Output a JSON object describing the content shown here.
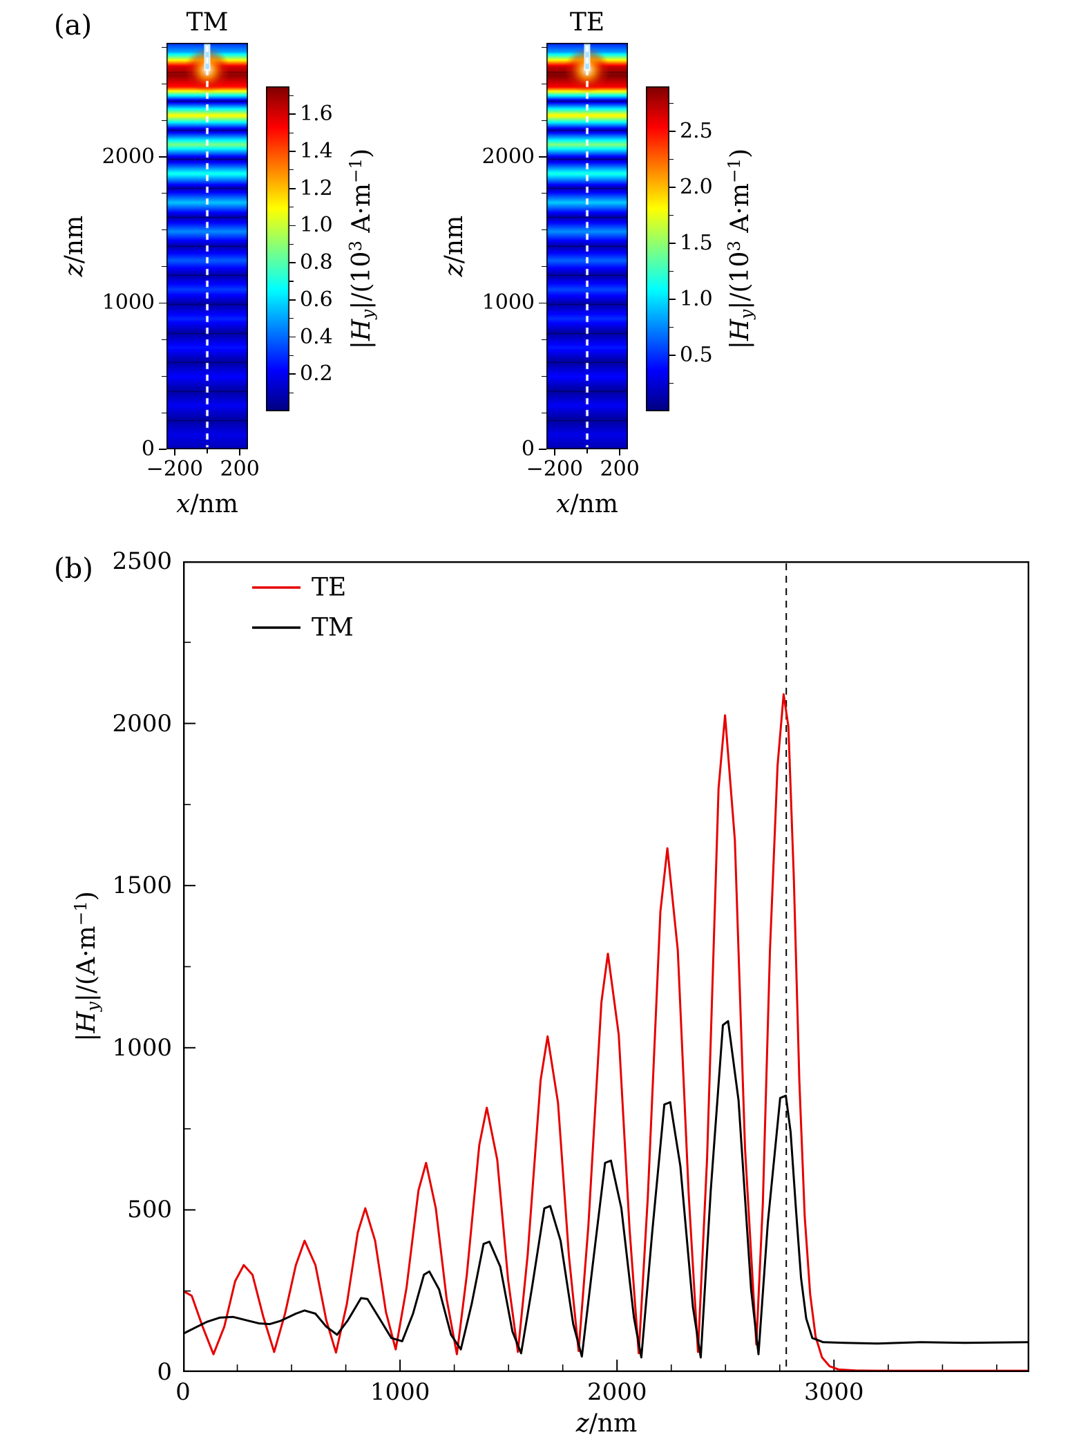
{
  "figure": {
    "panel_a_label": "(a)",
    "panel_b_label": "(b)"
  },
  "labels": {
    "z_nm": [
      {
        "t": "z",
        "i": true
      },
      {
        "t": "/nm"
      }
    ],
    "x_nm": [
      {
        "t": "x",
        "i": true
      },
      {
        "t": "/nm"
      }
    ],
    "hy_scaled": [
      {
        "t": "|"
      },
      {
        "t": "H",
        "i": true
      },
      {
        "t": "y",
        "i": true,
        "sub": true
      },
      {
        "t": "|/(10"
      },
      {
        "t": "3",
        "sup": true
      },
      {
        "t": " A·m"
      },
      {
        "t": "−1",
        "sup": true
      },
      {
        "t": ")"
      }
    ],
    "hy_plain": [
      {
        "t": "|"
      },
      {
        "t": "H",
        "i": true
      },
      {
        "t": "y",
        "i": true,
        "sub": true
      },
      {
        "t": "|/(A·m"
      },
      {
        "t": "−1",
        "sup": true
      },
      {
        "t": ")"
      }
    ]
  },
  "chart_data": [
    {
      "type": "heatmap",
      "id": "tm",
      "title": "TM",
      "xlabel": "x/nm",
      "ylabel": "z/nm",
      "xlim": [
        -250,
        250
      ],
      "zlim": [
        0,
        2780
      ],
      "x_ticks": [
        {
          "v": -200,
          "label": "−200"
        },
        {
          "v": 200,
          "label": "200"
        }
      ],
      "x_minor_ticks": [
        0
      ],
      "y_ticks": [
        {
          "v": 0,
          "label": "0"
        },
        {
          "v": 1000,
          "label": "1000"
        },
        {
          "v": 2000,
          "label": "2000"
        }
      ],
      "y_minor_step": 250,
      "layer_period_nm": 198.6,
      "groove": {
        "width_nm": 30,
        "depth_nm": 185
      },
      "center_dash_x": 0,
      "colorbar": {
        "vmin": 0,
        "vmax": 1.75,
        "ticks": [
          {
            "v": 0.2,
            "label": "0.2"
          },
          {
            "v": 0.4,
            "label": "0.4"
          },
          {
            "v": 0.6,
            "label": "0.6"
          },
          {
            "v": 0.8,
            "label": "0.8"
          },
          {
            "v": 1.0,
            "label": "1.0"
          },
          {
            "v": 1.2,
            "label": "1.2"
          },
          {
            "v": 1.4,
            "label": "1.4"
          },
          {
            "v": 1.6,
            "label": "1.6"
          }
        ]
      },
      "profile": [
        [
          0,
          0.1
        ],
        [
          99,
          0.18
        ],
        [
          199,
          0.06
        ],
        [
          298,
          0.2
        ],
        [
          397,
          0.06
        ],
        [
          496,
          0.22
        ],
        [
          596,
          0.06
        ],
        [
          695,
          0.25
        ],
        [
          794,
          0.06
        ],
        [
          893,
          0.28
        ],
        [
          993,
          0.06
        ],
        [
          1092,
          0.32
        ],
        [
          1191,
          0.07
        ],
        [
          1291,
          0.38
        ],
        [
          1390,
          0.07
        ],
        [
          1489,
          0.46
        ],
        [
          1589,
          0.07
        ],
        [
          1688,
          0.56
        ],
        [
          1787,
          0.08
        ],
        [
          1886,
          0.7
        ],
        [
          1986,
          0.08
        ],
        [
          2085,
          0.88
        ],
        [
          2184,
          0.09
        ],
        [
          2284,
          1.12
        ],
        [
          2383,
          0.1
        ],
        [
          2480,
          1.5
        ],
        [
          2560,
          1.72
        ],
        [
          2620,
          1.6
        ],
        [
          2680,
          0.9
        ],
        [
          2720,
          0.5
        ],
        [
          2780,
          0.3
        ]
      ]
    },
    {
      "type": "heatmap",
      "id": "te",
      "title": "TE",
      "xlabel": "x/nm",
      "ylabel": "z/nm",
      "xlim": [
        -250,
        250
      ],
      "zlim": [
        0,
        2780
      ],
      "x_ticks": [
        {
          "v": -200,
          "label": "−200"
        },
        {
          "v": 200,
          "label": "200"
        }
      ],
      "x_minor_ticks": [
        0
      ],
      "y_ticks": [
        {
          "v": 0,
          "label": "0"
        },
        {
          "v": 1000,
          "label": "1000"
        },
        {
          "v": 2000,
          "label": "2000"
        }
      ],
      "y_minor_step": 250,
      "layer_period_nm": 198.6,
      "groove": {
        "width_nm": 30,
        "depth_nm": 185
      },
      "center_dash_x": 0,
      "colorbar": {
        "vmin": 0,
        "vmax": 2.9,
        "ticks": [
          {
            "v": 0.5,
            "label": "0.5"
          },
          {
            "v": 1.0,
            "label": "1.0"
          },
          {
            "v": 1.5,
            "label": "1.5"
          },
          {
            "v": 2.0,
            "label": "2.0"
          },
          {
            "v": 2.5,
            "label": "2.5"
          }
        ]
      },
      "profile": [
        [
          0,
          0.15
        ],
        [
          99,
          0.3
        ],
        [
          199,
          0.08
        ],
        [
          298,
          0.34
        ],
        [
          397,
          0.08
        ],
        [
          496,
          0.38
        ],
        [
          596,
          0.09
        ],
        [
          695,
          0.43
        ],
        [
          794,
          0.09
        ],
        [
          893,
          0.49
        ],
        [
          993,
          0.1
        ],
        [
          1092,
          0.56
        ],
        [
          1191,
          0.1
        ],
        [
          1291,
          0.65
        ],
        [
          1390,
          0.11
        ],
        [
          1489,
          0.78
        ],
        [
          1589,
          0.11
        ],
        [
          1688,
          0.95
        ],
        [
          1787,
          0.12
        ],
        [
          1886,
          1.18
        ],
        [
          1986,
          0.13
        ],
        [
          2085,
          1.48
        ],
        [
          2184,
          0.14
        ],
        [
          2284,
          1.88
        ],
        [
          2383,
          0.16
        ],
        [
          2480,
          2.55
        ],
        [
          2560,
          2.9
        ],
        [
          2620,
          2.7
        ],
        [
          2680,
          1.5
        ],
        [
          2720,
          0.8
        ],
        [
          2780,
          0.45
        ]
      ]
    },
    {
      "type": "line",
      "id": "b",
      "xlabel": "z/nm",
      "ylabel": "|Hy|/(A·m−1)",
      "xlim": [
        0,
        3900
      ],
      "ylim": [
        0,
        2500
      ],
      "x_ticks": [
        {
          "v": 0,
          "label": "0"
        },
        {
          "v": 1000,
          "label": "1000"
        },
        {
          "v": 2000,
          "label": "2000"
        },
        {
          "v": 3000,
          "label": "3000"
        }
      ],
      "x_minor_step": 250,
      "y_ticks": [
        {
          "v": 0,
          "label": "0"
        },
        {
          "v": 500,
          "label": "500"
        },
        {
          "v": 1000,
          "label": "1000"
        },
        {
          "v": 1500,
          "label": "1500"
        },
        {
          "v": 2000,
          "label": "2000"
        },
        {
          "v": 2500,
          "label": "2500"
        }
      ],
      "y_minor_step": 250,
      "dashed_line_x": 2780,
      "grid": false,
      "legend_position": "top-left",
      "series": [
        {
          "name": "TE",
          "color": "#e60000",
          "points": [
            [
              0,
              250
            ],
            [
              40,
              235
            ],
            [
              90,
              140
            ],
            [
              140,
              55
            ],
            [
              190,
              140
            ],
            [
              240,
              280
            ],
            [
              280,
              330
            ],
            [
              320,
              300
            ],
            [
              370,
              170
            ],
            [
              420,
              62
            ],
            [
              470,
              180
            ],
            [
              520,
              330
            ],
            [
              560,
              405
            ],
            [
              610,
              330
            ],
            [
              660,
              160
            ],
            [
              705,
              60
            ],
            [
              755,
              210
            ],
            [
              805,
              430
            ],
            [
              840,
              505
            ],
            [
              885,
              405
            ],
            [
              935,
              185
            ],
            [
              980,
              70
            ],
            [
              1030,
              260
            ],
            [
              1085,
              560
            ],
            [
              1120,
              645
            ],
            [
              1165,
              505
            ],
            [
              1215,
              225
            ],
            [
              1262,
              55
            ],
            [
              1308,
              300
            ],
            [
              1365,
              700
            ],
            [
              1400,
              815
            ],
            [
              1448,
              655
            ],
            [
              1498,
              285
            ],
            [
              1543,
              62
            ],
            [
              1588,
              360
            ],
            [
              1648,
              900
            ],
            [
              1680,
              1035
            ],
            [
              1728,
              830
            ],
            [
              1778,
              360
            ],
            [
              1823,
              65
            ],
            [
              1868,
              450
            ],
            [
              1928,
              1140
            ],
            [
              1958,
              1290
            ],
            [
              2008,
              1040
            ],
            [
              2058,
              440
            ],
            [
              2100,
              58
            ],
            [
              2142,
              540
            ],
            [
              2200,
              1420
            ],
            [
              2232,
              1615
            ],
            [
              2280,
              1300
            ],
            [
              2330,
              550
            ],
            [
              2373,
              62
            ],
            [
              2415,
              660
            ],
            [
              2468,
              1800
            ],
            [
              2498,
              2025
            ],
            [
              2543,
              1640
            ],
            [
              2590,
              690
            ],
            [
              2642,
              85
            ],
            [
              2672,
              520
            ],
            [
              2705,
              1300
            ],
            [
              2740,
              1870
            ],
            [
              2768,
              2090
            ],
            [
              2790,
              1990
            ],
            [
              2815,
              1520
            ],
            [
              2840,
              900
            ],
            [
              2865,
              480
            ],
            [
              2890,
              240
            ],
            [
              2915,
              110
            ],
            [
              2945,
              45
            ],
            [
              2980,
              18
            ],
            [
              3020,
              8
            ],
            [
              3100,
              5
            ],
            [
              3200,
              4
            ],
            [
              3400,
              4
            ],
            [
              3700,
              4
            ],
            [
              3900,
              4
            ]
          ]
        },
        {
          "name": "TM",
          "color": "#000000",
          "points": [
            [
              0,
              118
            ],
            [
              50,
              135
            ],
            [
              110,
              155
            ],
            [
              170,
              168
            ],
            [
              230,
              170
            ],
            [
              290,
              160
            ],
            [
              350,
              150
            ],
            [
              400,
              148
            ],
            [
              450,
              158
            ],
            [
              520,
              180
            ],
            [
              560,
              190
            ],
            [
              610,
              180
            ],
            [
              660,
              140
            ],
            [
              710,
              115
            ],
            [
              760,
              160
            ],
            [
              820,
              228
            ],
            [
              850,
              225
            ],
            [
              910,
              160
            ],
            [
              960,
              105
            ],
            [
              1010,
              95
            ],
            [
              1060,
              180
            ],
            [
              1110,
              300
            ],
            [
              1135,
              310
            ],
            [
              1180,
              255
            ],
            [
              1235,
              115
            ],
            [
              1280,
              70
            ],
            [
              1330,
              210
            ],
            [
              1385,
              395
            ],
            [
              1412,
              402
            ],
            [
              1462,
              325
            ],
            [
              1518,
              125
            ],
            [
              1558,
              58
            ],
            [
              1608,
              260
            ],
            [
              1665,
              505
            ],
            [
              1692,
              512
            ],
            [
              1740,
              405
            ],
            [
              1798,
              148
            ],
            [
              1838,
              48
            ],
            [
              1888,
              330
            ],
            [
              1945,
              645
            ],
            [
              1972,
              652
            ],
            [
              2020,
              505
            ],
            [
              2078,
              168
            ],
            [
              2112,
              45
            ],
            [
              2162,
              430
            ],
            [
              2218,
              825
            ],
            [
              2245,
              832
            ],
            [
              2292,
              635
            ],
            [
              2350,
              200
            ],
            [
              2386,
              45
            ],
            [
              2432,
              560
            ],
            [
              2488,
              1070
            ],
            [
              2512,
              1082
            ],
            [
              2560,
              838
            ],
            [
              2618,
              255
            ],
            [
              2652,
              55
            ],
            [
              2695,
              460
            ],
            [
              2752,
              845
            ],
            [
              2778,
              852
            ],
            [
              2800,
              740
            ],
            [
              2825,
              500
            ],
            [
              2848,
              290
            ],
            [
              2872,
              165
            ],
            [
              2900,
              105
            ],
            [
              2950,
              92
            ],
            [
              3050,
              90
            ],
            [
              3200,
              88
            ],
            [
              3400,
              92
            ],
            [
              3600,
              90
            ],
            [
              3900,
              92
            ]
          ]
        }
      ]
    }
  ]
}
